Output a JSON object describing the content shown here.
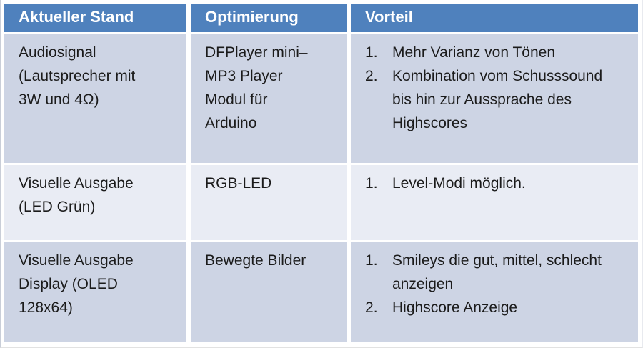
{
  "colors": {
    "header_bg": "#4f81bd",
    "header_text": "#ffffff",
    "row_band_dark": "#cdd4e4",
    "row_band_light": "#e9ecf4",
    "grid_lines": "#ffffff",
    "body_text": "#1b1b1b"
  },
  "table": {
    "headers": [
      "Aktueller Stand",
      "Optimierung",
      "Vorteil"
    ],
    "rows": [
      {
        "aktueller_stand": "Audiosignal (Lautsprecher mit 3W und 4Ω)",
        "optimierung": "DFPlayer mini– MP3 Player Modul für Arduino",
        "vorteil": [
          "Mehr Varianz von Tönen",
          "Kombination vom Schusssound bis hin zur Aussprache des Highscores"
        ]
      },
      {
        "aktueller_stand": "Visuelle Ausgabe (LED Grün)",
        "optimierung": "RGB-LED",
        "vorteil": [
          "Level-Modi möglich."
        ]
      },
      {
        "aktueller_stand": "Visuelle Ausgabe Display (OLED 128x64)",
        "optimierung": "Bewegte Bilder",
        "vorteil": [
          "Smileys die gut, mittel, schlecht anzeigen",
          "Highscore Anzeige"
        ]
      }
    ]
  }
}
